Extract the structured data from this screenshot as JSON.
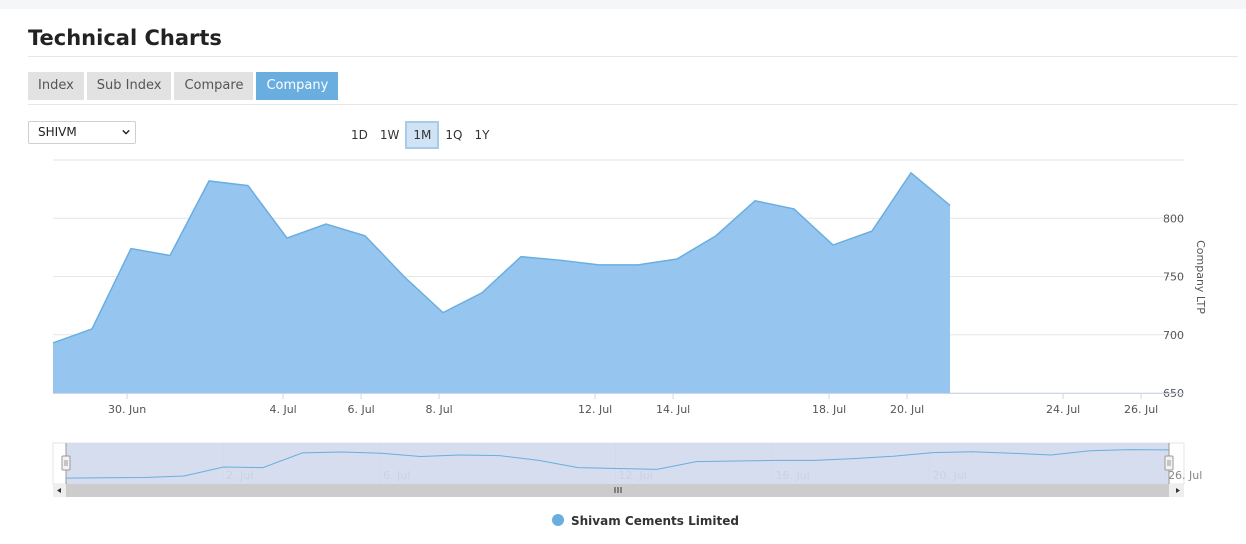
{
  "page": {
    "title": "Technical Charts"
  },
  "tabs": [
    {
      "label": "Index",
      "active": false
    },
    {
      "label": "Sub Index",
      "active": false
    },
    {
      "label": "Compare",
      "active": false
    },
    {
      "label": "Company",
      "active": true
    }
  ],
  "company_select": {
    "value": "SHIVM"
  },
  "ranges": [
    {
      "label": "1D",
      "active": false
    },
    {
      "label": "1W",
      "active": false
    },
    {
      "label": "1M",
      "active": true
    },
    {
      "label": "1Q",
      "active": false
    },
    {
      "label": "1Y",
      "active": false
    }
  ],
  "colors": {
    "area_fill": "#96c6ef",
    "area_line": "#6aaee0",
    "tab_active": "#6aaee0",
    "navigator_mask": "#d2d9ec"
  },
  "navigator": {
    "tick_labels": [
      "2. Jul",
      "6. Jul",
      "12. Jul",
      "16. Jul",
      "20. Jul",
      "26. Jul"
    ],
    "tick_days": [
      33,
      37,
      43,
      47,
      51,
      57
    ],
    "series_values": [
      693,
      694,
      695,
      700,
      730,
      728,
      777,
      780,
      776,
      765,
      770,
      768,
      752,
      728,
      725,
      722,
      748,
      750,
      752,
      752,
      758,
      766,
      778,
      781,
      776,
      770,
      784,
      788,
      787
    ],
    "series_start_day": 29,
    "series_end_day": 57.1
  },
  "chart_data": {
    "type": "area",
    "y_axis_title": "Company LTP",
    "ylim": [
      650,
      850
    ],
    "y_ticks": [
      650,
      700,
      750,
      800
    ],
    "y_axis_side": "right",
    "xlim_days": [
      28.1,
      57.1
    ],
    "x_day_origin": "2024-06-01",
    "x_ticks": [
      {
        "day": 30,
        "label": "30. Jun"
      },
      {
        "day": 34,
        "label": "4. Jul"
      },
      {
        "day": 36,
        "label": "6. Jul"
      },
      {
        "day": 38,
        "label": "8. Jul"
      },
      {
        "day": 42,
        "label": "12. Jul"
      },
      {
        "day": 44,
        "label": "14. Jul"
      },
      {
        "day": 48,
        "label": "18. Jul"
      },
      {
        "day": 50,
        "label": "20. Jul"
      },
      {
        "day": 54,
        "label": "24. Jul"
      },
      {
        "day": 56,
        "label": "26. Jul"
      }
    ],
    "series": [
      {
        "name": "Shivam Cements Limited",
        "points": [
          [
            28.1,
            693
          ],
          [
            29.1,
            705
          ],
          [
            30.1,
            774
          ],
          [
            31.1,
            768
          ],
          [
            32.1,
            832
          ],
          [
            33.1,
            828
          ],
          [
            34.1,
            783
          ],
          [
            35.1,
            795
          ],
          [
            36.1,
            785
          ],
          [
            37.1,
            750
          ],
          [
            38.1,
            719
          ],
          [
            39.1,
            736
          ],
          [
            40.1,
            767
          ],
          [
            41.1,
            764
          ],
          [
            42.1,
            760
          ],
          [
            43.1,
            760
          ],
          [
            44.1,
            765
          ],
          [
            45.1,
            785
          ],
          [
            46.1,
            815
          ],
          [
            47.1,
            808
          ],
          [
            48.1,
            777
          ],
          [
            49.1,
            789
          ],
          [
            50.1,
            839
          ],
          [
            51.1,
            811
          ]
        ]
      }
    ],
    "grid": true,
    "legend": "bottom-center",
    "legend_entries": [
      "Shivam Cements Limited"
    ]
  }
}
